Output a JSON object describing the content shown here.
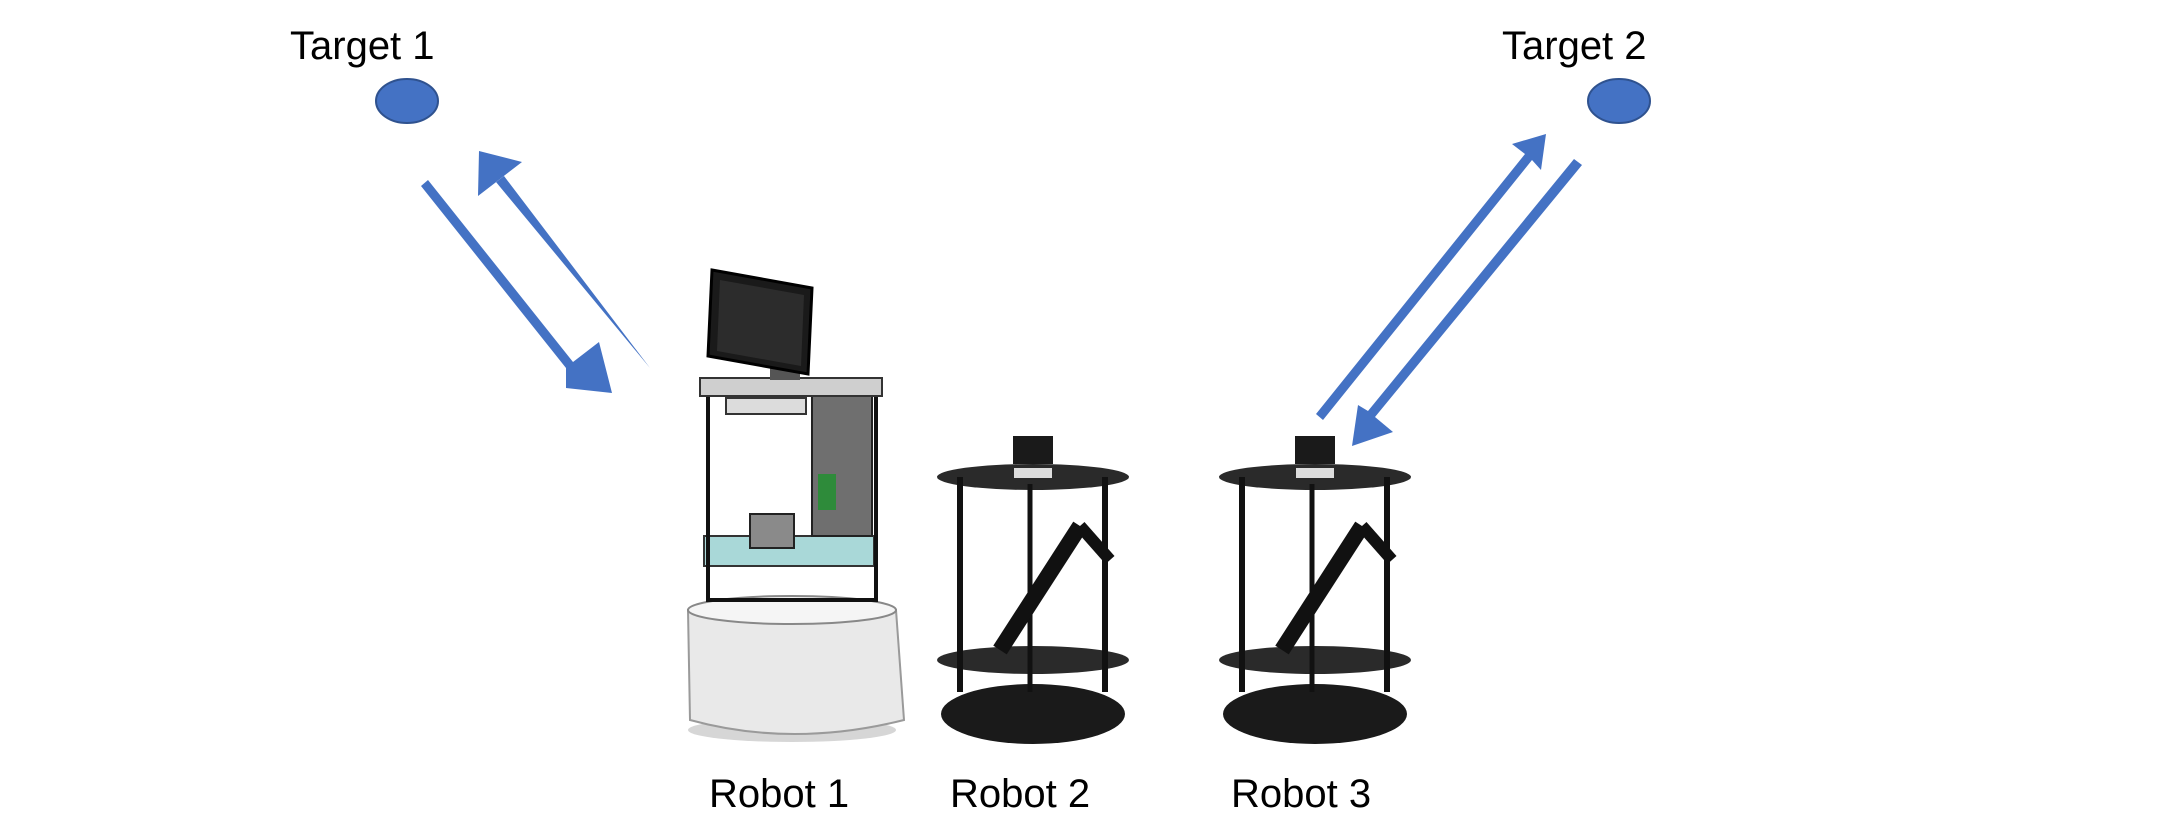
{
  "colors": {
    "arrow": "#4472C4",
    "target": "#4472C4",
    "target_stroke": "#2F528F",
    "robot_frame": "#1a1a1a",
    "robot_base_white": "#e9e9e9",
    "plate_cyan": "#a9d8d8",
    "board_green": "#2e8b3a"
  },
  "targets": [
    {
      "label": "Target 1"
    },
    {
      "label": "Target 2"
    }
  ],
  "robots": [
    {
      "label": "Robot 1"
    },
    {
      "label": "Robot 2"
    },
    {
      "label": "Robot 3"
    }
  ]
}
